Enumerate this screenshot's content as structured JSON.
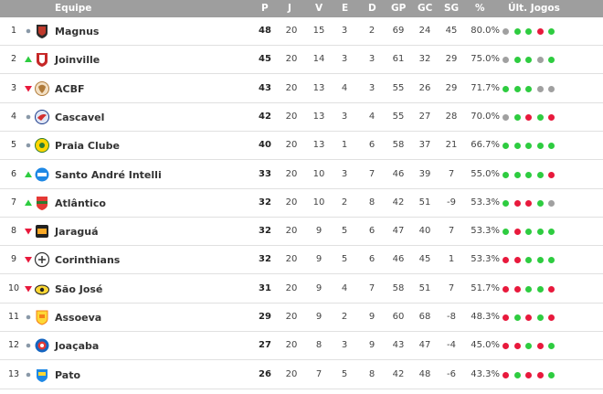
{
  "header": {
    "team": "Equipe",
    "p": "P",
    "j": "J",
    "v": "V",
    "e": "E",
    "d": "D",
    "gp": "GP",
    "gc": "GC",
    "sg": "SG",
    "pct": "%",
    "last": "Últ. Jogos"
  },
  "colors": {
    "win": "#2ecc40",
    "loss": "#e8193c",
    "draw": "#a0a0a0",
    "up": "#2ecc40",
    "down": "#e8193c",
    "same": "#8a99a8"
  },
  "rows": [
    {
      "pos": "1",
      "move": "same",
      "team": "Magnus",
      "crest": "magnus-crest-icon",
      "p": "48",
      "j": "20",
      "v": "15",
      "e": "3",
      "d": "2",
      "gp": "69",
      "gc": "24",
      "sg": "45",
      "pct": "80.0%",
      "last": [
        "draw",
        "win",
        "win",
        "loss",
        "win"
      ]
    },
    {
      "pos": "2",
      "move": "up",
      "team": "Joinville",
      "crest": "joinville-crest-icon",
      "p": "45",
      "j": "20",
      "v": "14",
      "e": "3",
      "d": "3",
      "gp": "61",
      "gc": "32",
      "sg": "29",
      "pct": "75.0%",
      "last": [
        "draw",
        "win",
        "win",
        "draw",
        "win"
      ]
    },
    {
      "pos": "3",
      "move": "down",
      "team": "ACBF",
      "crest": "acbf-crest-icon",
      "p": "43",
      "j": "20",
      "v": "13",
      "e": "4",
      "d": "3",
      "gp": "55",
      "gc": "26",
      "sg": "29",
      "pct": "71.7%",
      "last": [
        "win",
        "win",
        "win",
        "draw",
        "draw"
      ]
    },
    {
      "pos": "4",
      "move": "same",
      "team": "Cascavel",
      "crest": "cascavel-crest-icon",
      "p": "42",
      "j": "20",
      "v": "13",
      "e": "3",
      "d": "4",
      "gp": "55",
      "gc": "27",
      "sg": "28",
      "pct": "70.0%",
      "last": [
        "draw",
        "win",
        "loss",
        "win",
        "loss"
      ]
    },
    {
      "pos": "5",
      "move": "same",
      "team": "Praia Clube",
      "crest": "praia-clube-crest-icon",
      "p": "40",
      "j": "20",
      "v": "13",
      "e": "1",
      "d": "6",
      "gp": "58",
      "gc": "37",
      "sg": "21",
      "pct": "66.7%",
      "last": [
        "win",
        "win",
        "win",
        "win",
        "win"
      ]
    },
    {
      "pos": "6",
      "move": "up",
      "team": "Santo André Intelli",
      "crest": "santo-andre-crest-icon",
      "p": "33",
      "j": "20",
      "v": "10",
      "e": "3",
      "d": "7",
      "gp": "46",
      "gc": "39",
      "sg": "7",
      "pct": "55.0%",
      "last": [
        "win",
        "win",
        "win",
        "win",
        "loss"
      ]
    },
    {
      "pos": "7",
      "move": "up",
      "team": "Atlântico",
      "crest": "atlantico-crest-icon",
      "p": "32",
      "j": "20",
      "v": "10",
      "e": "2",
      "d": "8",
      "gp": "42",
      "gc": "51",
      "sg": "-9",
      "pct": "53.3%",
      "last": [
        "win",
        "loss",
        "loss",
        "win",
        "draw"
      ]
    },
    {
      "pos": "8",
      "move": "down",
      "team": "Jaraguá",
      "crest": "jaragua-crest-icon",
      "p": "32",
      "j": "20",
      "v": "9",
      "e": "5",
      "d": "6",
      "gp": "47",
      "gc": "40",
      "sg": "7",
      "pct": "53.3%",
      "last": [
        "win",
        "loss",
        "win",
        "win",
        "win"
      ]
    },
    {
      "pos": "9",
      "move": "down",
      "team": "Corinthians",
      "crest": "corinthians-crest-icon",
      "p": "32",
      "j": "20",
      "v": "9",
      "e": "5",
      "d": "6",
      "gp": "46",
      "gc": "45",
      "sg": "1",
      "pct": "53.3%",
      "last": [
        "loss",
        "loss",
        "win",
        "win",
        "win"
      ]
    },
    {
      "pos": "10",
      "move": "down",
      "team": "São José",
      "crest": "sao-jose-crest-icon",
      "p": "31",
      "j": "20",
      "v": "9",
      "e": "4",
      "d": "7",
      "gp": "58",
      "gc": "51",
      "sg": "7",
      "pct": "51.7%",
      "last": [
        "loss",
        "loss",
        "win",
        "win",
        "loss"
      ]
    },
    {
      "pos": "11",
      "move": "same",
      "team": "Assoeva",
      "crest": "assoeva-crest-icon",
      "p": "29",
      "j": "20",
      "v": "9",
      "e": "2",
      "d": "9",
      "gp": "60",
      "gc": "68",
      "sg": "-8",
      "pct": "48.3%",
      "last": [
        "loss",
        "win",
        "loss",
        "win",
        "loss"
      ]
    },
    {
      "pos": "12",
      "move": "same",
      "team": "Joaçaba",
      "crest": "joacaba-crest-icon",
      "p": "27",
      "j": "20",
      "v": "8",
      "e": "3",
      "d": "9",
      "gp": "43",
      "gc": "47",
      "sg": "-4",
      "pct": "45.0%",
      "last": [
        "loss",
        "loss",
        "win",
        "loss",
        "win"
      ]
    },
    {
      "pos": "13",
      "move": "same",
      "team": "Pato",
      "crest": "pato-crest-icon",
      "p": "26",
      "j": "20",
      "v": "7",
      "e": "5",
      "d": "8",
      "gp": "42",
      "gc": "48",
      "sg": "-6",
      "pct": "43.3%",
      "last": [
        "loss",
        "win",
        "loss",
        "loss",
        "win"
      ]
    }
  ]
}
